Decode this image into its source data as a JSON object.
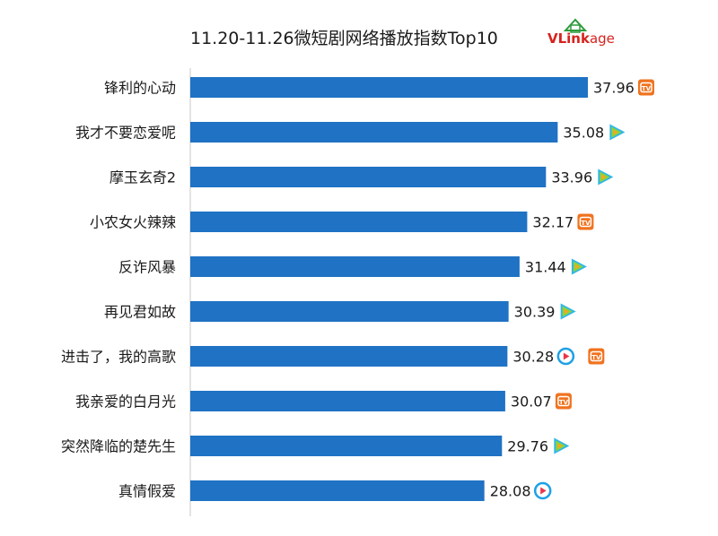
{
  "title": "11.20-11.26微短剧网络播放指数Top10",
  "logo": {
    "v": "V",
    "link": "Link",
    "age": "age"
  },
  "colors": {
    "bar": "#1f72c4",
    "axis": "#c8c8c8"
  },
  "chart_data": {
    "type": "bar",
    "orientation": "horizontal",
    "title": "11.20-11.26微短剧网络播放指数Top10",
    "xlim": [
      0,
      40
    ],
    "categories": [
      "锋利的心动",
      "我才不要恋爱呢",
      "摩玉玄奇2",
      "小农女火辣辣",
      "反诈风暴",
      "再见君如故",
      "进击了，我的高歌",
      "我亲爱的白月光",
      "突然降临的楚先生",
      "真情假爱"
    ],
    "values": [
      37.96,
      35.08,
      33.96,
      32.17,
      31.44,
      30.39,
      30.28,
      30.07,
      29.76,
      28.08
    ],
    "platforms": [
      [
        "mango-tv-icon"
      ],
      [
        "tencent-video-icon"
      ],
      [
        "tencent-video-icon"
      ],
      [
        "mango-tv-icon"
      ],
      [
        "tencent-video-icon"
      ],
      [
        "tencent-video-icon"
      ],
      [
        "youku-icon",
        "mango-tv-icon"
      ],
      [
        "mango-tv-icon"
      ],
      [
        "tencent-video-icon"
      ],
      [
        "youku-icon"
      ]
    ]
  }
}
